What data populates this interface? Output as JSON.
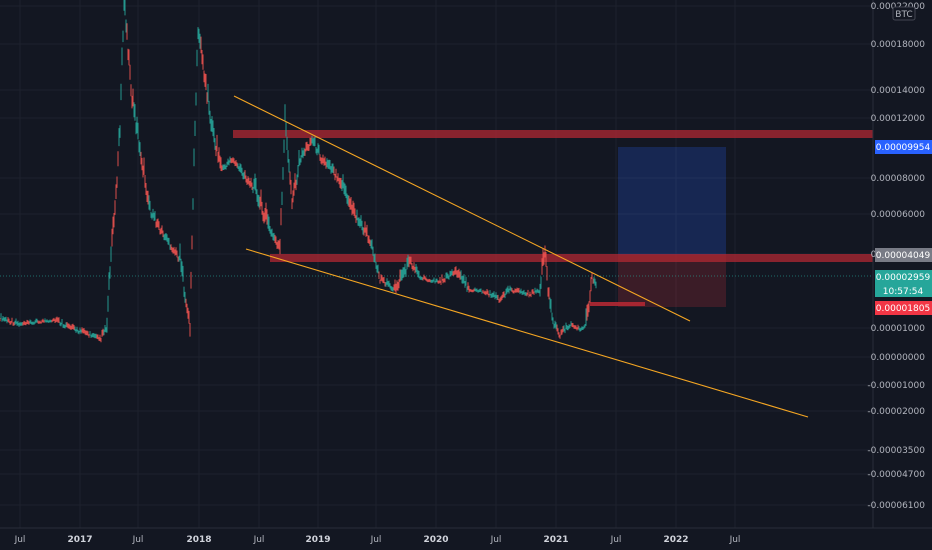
{
  "chart_data": {
    "type": "line",
    "currency_label": "BTC",
    "y_ticks": [
      "0.00022000",
      "0.00018000",
      "0.00014000",
      "0.00012000",
      "0.00008000",
      "0.00006000",
      "0.00004000",
      "0.00001000",
      "0.00000000",
      "-0.00001000",
      "-0.00002000",
      "-0.00003500",
      "-0.00004700",
      "-0.00006100"
    ],
    "x_ticks": [
      {
        "label": "Jul",
        "year": false
      },
      {
        "label": "2017",
        "year": true
      },
      {
        "label": "Jul",
        "year": false
      },
      {
        "label": "2018",
        "year": true
      },
      {
        "label": "Jul",
        "year": false
      },
      {
        "label": "2019",
        "year": true
      },
      {
        "label": "Jul",
        "year": false
      },
      {
        "label": "2020",
        "year": true
      },
      {
        "label": "Jul",
        "year": false
      },
      {
        "label": "2021",
        "year": true
      },
      {
        "label": "Jul",
        "year": false
      },
      {
        "label": "2022",
        "year": true
      },
      {
        "label": "Jul",
        "year": false
      }
    ],
    "price_tags": {
      "target": {
        "label": "0.00009954",
        "color": "#2962ff"
      },
      "resistance": {
        "label": "0.00004049",
        "color": "#787b86"
      },
      "current": {
        "label": "0.00002959",
        "countdown": "10:57:54",
        "color": "#26a69a"
      },
      "stop": {
        "label": "0.00001805",
        "color": "#f23645"
      }
    },
    "series": [
      {
        "values": [
          1.75e-05,
          1.6e-05,
          1.45e-05,
          1.5e-05,
          1.6e-05,
          1.4e-05,
          1.25e-05,
          1.2e-05,
          1.12e-06,
          6.5e-05,
          9e-05,
          0.00022,
          0.00012,
          0.0001,
          7e-05,
          5e-05,
          5.5e-05,
          4.5e-05,
          4e-05,
          1.8e-05,
          2e-06,
          0.00014,
          0.00022,
          0.00017,
          0.00012,
          8e-05,
          9e-05,
          7.5e-05,
          7e-05,
          6.5e-05,
          4e-05,
          4e-05,
          0.00011,
          9e-05,
          0.0001,
          9e-05,
          8e-05,
          6e-05,
          4e-05,
          3.2e-05,
          2.5e-05,
          2.8e-05,
          3.3e-05,
          2.8e-05,
          2.6e-05,
          2.8e-05,
          2.2e-05,
          2.5e-05,
          2e-05,
          2.4e-05,
          1.8e-05,
          1.7e-05,
          4e-05,
          2.5e-05,
          1.8e-05,
          8e-06,
          6e-06,
          8e-06,
          1.2e-05,
          1e-05,
          1.5e-05,
          2.5e-05,
          3e-05,
          2.9e-05
        ]
      }
    ]
  }
}
